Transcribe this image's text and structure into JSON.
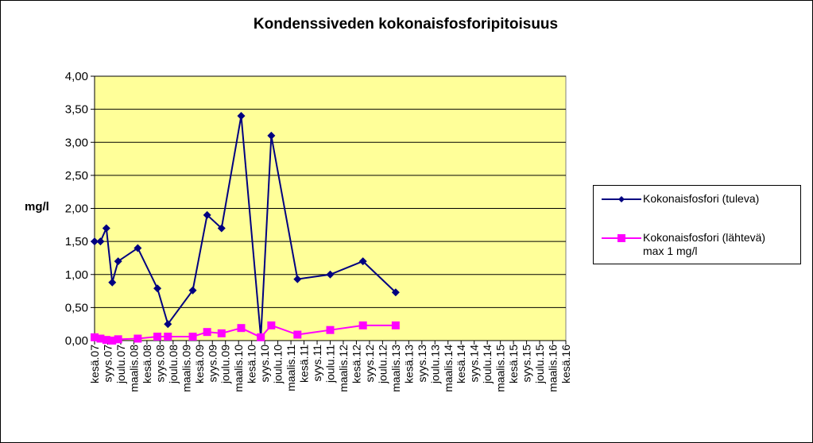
{
  "chart_data": {
    "type": "line",
    "title": "Kondenssiveden  kokonaisfosforipitoisuus",
    "ylabel": "mg/l",
    "xlabel": "",
    "ylim": [
      0,
      4
    ],
    "yticks": [
      "0,00",
      "0,50",
      "1,00",
      "1,50",
      "2,00",
      "2,50",
      "3,00",
      "3,50",
      "4,00"
    ],
    "grid": true,
    "legend_position": "right",
    "plot_background": "#ffff99",
    "categories": [
      "kesä.07",
      "syys.07",
      "joulu.07",
      "maalis.08",
      "kesä.08",
      "syys.08",
      "joulu.08",
      "maalis.09",
      "kesä.09",
      "syys.09",
      "joulu.09",
      "maalis.10",
      "kesä.10",
      "syys.10",
      "joulu.10",
      "maalis.11",
      "kesä.11",
      "syys.11",
      "joulu.11",
      "maalis.12",
      "kesä.12",
      "syys.12",
      "joulu.12",
      "maalis.13",
      "kesä.13",
      "syys.13",
      "joulu.13",
      "maalis.14",
      "kesä.14",
      "syys.14",
      "joulu.14",
      "maalis.15",
      "kesä.15",
      "syys.15",
      "joulu.15",
      "maalis.16",
      "kesä.16"
    ],
    "series": [
      {
        "name": "Kokonaisfosfori (tuleva)",
        "color": "#000080",
        "marker": "diamond",
        "points": [
          {
            "x": 0.0,
            "y": 1.5
          },
          {
            "x": 0.45,
            "y": 1.5
          },
          {
            "x": 0.9,
            "y": 1.7
          },
          {
            "x": 1.35,
            "y": 0.88
          },
          {
            "x": 1.8,
            "y": 1.2
          },
          {
            "x": 3.3,
            "y": 1.4
          },
          {
            "x": 4.8,
            "y": 0.79
          },
          {
            "x": 5.6,
            "y": 0.25
          },
          {
            "x": 7.5,
            "y": 0.76
          },
          {
            "x": 8.6,
            "y": 1.9
          },
          {
            "x": 9.7,
            "y": 1.7
          },
          {
            "x": 11.2,
            "y": 3.4
          },
          {
            "x": 12.7,
            "y": 0.05
          },
          {
            "x": 13.5,
            "y": 3.1
          },
          {
            "x": 15.5,
            "y": 0.93
          },
          {
            "x": 18.0,
            "y": 1.0
          },
          {
            "x": 20.5,
            "y": 1.2
          },
          {
            "x": 23.0,
            "y": 0.73
          }
        ]
      },
      {
        "name": "Kokonaisfosfori (lähtevä) max 1 mg/l",
        "name_line1": "Kokonaisfosfori (lähtevä)",
        "name_line2": "max 1 mg/l",
        "color": "#ff00ff",
        "marker": "square",
        "points": [
          {
            "x": 0.0,
            "y": 0.05
          },
          {
            "x": 0.45,
            "y": 0.03
          },
          {
            "x": 0.9,
            "y": 0.01
          },
          {
            "x": 1.35,
            "y": 0.0
          },
          {
            "x": 1.8,
            "y": 0.02
          },
          {
            "x": 3.3,
            "y": 0.03
          },
          {
            "x": 4.8,
            "y": 0.06
          },
          {
            "x": 5.6,
            "y": 0.06
          },
          {
            "x": 7.5,
            "y": 0.06
          },
          {
            "x": 8.6,
            "y": 0.13
          },
          {
            "x": 9.7,
            "y": 0.11
          },
          {
            "x": 11.2,
            "y": 0.19
          },
          {
            "x": 12.7,
            "y": 0.05
          },
          {
            "x": 13.5,
            "y": 0.23
          },
          {
            "x": 15.5,
            "y": 0.09
          },
          {
            "x": 18.0,
            "y": 0.16
          },
          {
            "x": 20.5,
            "y": 0.23
          },
          {
            "x": 23.0,
            "y": 0.23
          }
        ]
      }
    ]
  }
}
